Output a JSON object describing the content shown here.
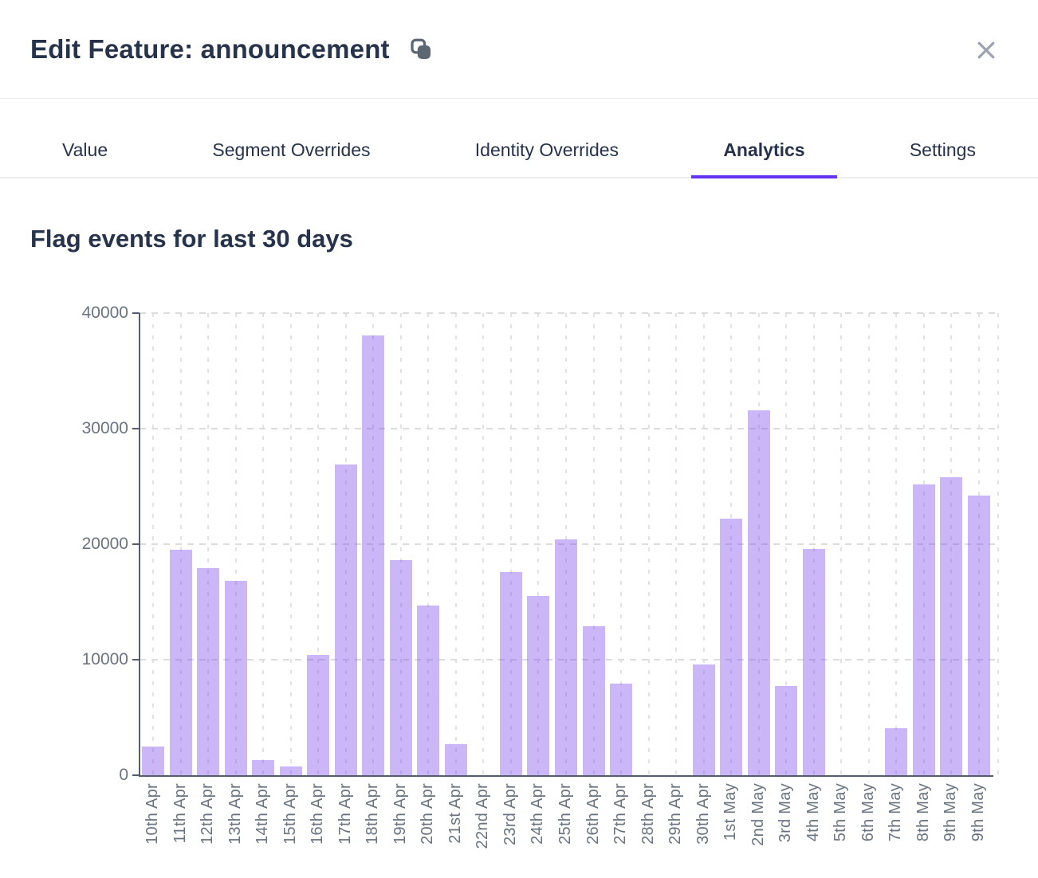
{
  "header": {
    "title": "Edit Feature: announcement"
  },
  "icons": {
    "title_action": "copy-icon",
    "header_close": "close-icon"
  },
  "tabs": {
    "items": [
      {
        "label": "Value",
        "active": false
      },
      {
        "label": "Segment Overrides",
        "active": false
      },
      {
        "label": "Identity Overrides",
        "active": false
      },
      {
        "label": "Analytics",
        "active": true
      },
      {
        "label": "Settings",
        "active": false
      }
    ]
  },
  "colors": {
    "accent": "#6633f2",
    "bar": "rgba(125,73,238,0.4)",
    "bar_effective_fill": "#cbb6f8",
    "heading_text": "#26334a",
    "axis_text": "#6a7480",
    "axis_line": "#535d6d",
    "gridline": "#dedede",
    "close_icon": "#9aa3af",
    "copy_icon": "#5c6773"
  },
  "chart_data": {
    "type": "bar",
    "title": "Flag events for last 30 days",
    "xlabel": "",
    "ylabel": "",
    "ylim": [
      0,
      40000
    ],
    "yticks": [
      0,
      10000,
      20000,
      30000,
      40000
    ],
    "grid": "dashed",
    "legend": "none",
    "categories": [
      "10th Apr",
      "11th Apr",
      "12th Apr",
      "13th Apr",
      "14th Apr",
      "15th Apr",
      "16th Apr",
      "17th Apr",
      "18th Apr",
      "19th Apr",
      "20th Apr",
      "21st Apr",
      "22nd Apr",
      "23rd Apr",
      "24th Apr",
      "25th Apr",
      "26th Apr",
      "27th Apr",
      "28th Apr",
      "29th Apr",
      "30th Apr",
      "1st May",
      "2nd May",
      "3rd May",
      "4th May",
      "5th May",
      "6th May",
      "7th May",
      "8th May",
      "9th May",
      "9th May"
    ],
    "values": [
      2500,
      19500,
      17900,
      16800,
      1300,
      750,
      10400,
      26900,
      38100,
      18600,
      14700,
      2700,
      0,
      17600,
      15500,
      20400,
      12900,
      7900,
      0,
      0,
      9600,
      22200,
      31600,
      7700,
      19600,
      0,
      0,
      4100,
      25200,
      25800,
      24200
    ]
  }
}
